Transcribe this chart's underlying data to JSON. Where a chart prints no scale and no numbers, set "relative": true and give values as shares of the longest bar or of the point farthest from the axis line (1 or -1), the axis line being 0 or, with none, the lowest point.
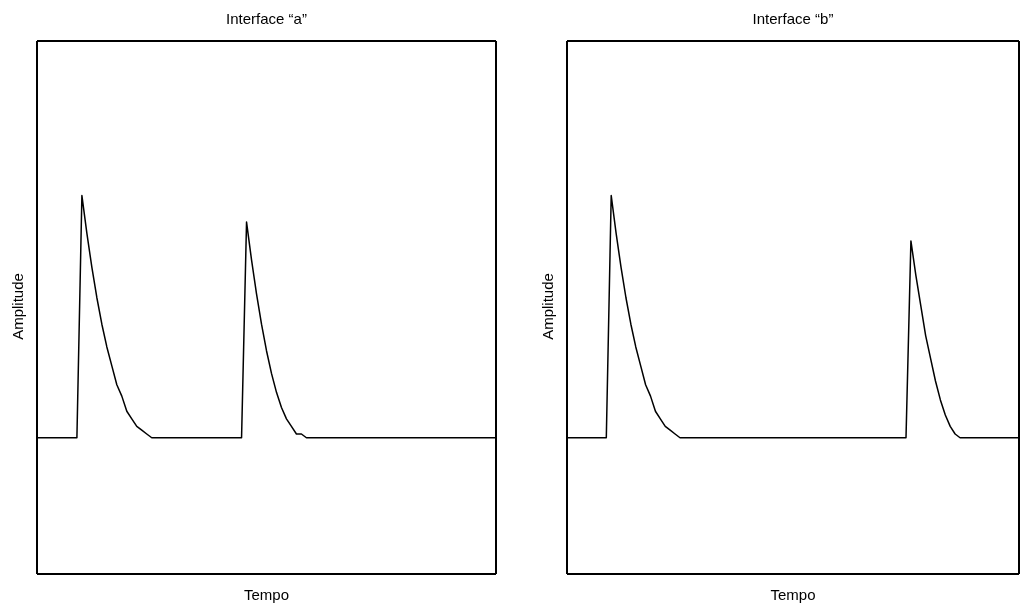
{
  "chart_data": [
    {
      "type": "line",
      "title": "Interface “a”",
      "xlabel": "Tempo",
      "ylabel": "Amplitude",
      "relative": true,
      "color": "#000000",
      "categories": [
        null,
        null,
        null,
        null,
        null,
        null,
        null,
        null,
        null,
        null,
        null,
        null,
        null,
        null,
        null,
        null,
        null,
        null,
        null,
        null,
        null,
        null,
        null,
        null,
        null,
        null,
        null,
        null,
        null,
        null,
        null,
        null,
        null,
        null,
        null,
        null,
        null,
        null,
        null,
        null,
        null,
        null,
        null,
        null,
        null,
        null,
        null,
        null,
        null,
        null,
        null,
        null,
        null,
        null,
        null,
        null,
        null,
        null,
        null,
        null,
        null,
        null,
        null,
        null,
        null,
        null,
        null,
        null,
        null,
        null,
        null,
        null,
        null,
        null,
        null,
        null,
        null,
        null,
        null,
        null,
        null,
        null,
        null,
        null,
        null,
        null,
        null,
        null,
        null,
        null,
        null,
        null,
        null
      ],
      "values": [
        0.36,
        0.36,
        0.36,
        0.36,
        0.36,
        0.36,
        0.36,
        0.36,
        0.36,
        1,
        0.9,
        0.81,
        0.73,
        0.66,
        0.6,
        0.55,
        0.5,
        0.47,
        0.43,
        0.41,
        0.39,
        0.38,
        0.37,
        0.36,
        0.36,
        0.36,
        0.36,
        0.36,
        0.36,
        0.36,
        0.36,
        0.36,
        0.36,
        0.36,
        0.36,
        0.36,
        0.36,
        0.36,
        0.36,
        0.36,
        0.36,
        0.36,
        0.93,
        0.83,
        0.74,
        0.66,
        0.59,
        0.53,
        0.48,
        0.44,
        0.41,
        0.39,
        0.37,
        0.37,
        0.36,
        0.36,
        0.36,
        0.36,
        0.36,
        0.36,
        0.36,
        0.36,
        0.36,
        0.36,
        0.36,
        0.36,
        0.36,
        0.36,
        0.36,
        0.36,
        0.36,
        0.36,
        0.36,
        0.36,
        0.36,
        0.36,
        0.36,
        0.36,
        0.36,
        0.36,
        0.36,
        0.36,
        0.36,
        0.36,
        0.36,
        0.36,
        0.36,
        0.36,
        0.36,
        0.36,
        0.36,
        0.36,
        0.36
      ]
    },
    {
      "type": "line",
      "title": "Interface “b”",
      "xlabel": "Tempo",
      "ylabel": "Amplitude",
      "relative": true,
      "color": "#000000",
      "categories": [
        null,
        null,
        null,
        null,
        null,
        null,
        null,
        null,
        null,
        null,
        null,
        null,
        null,
        null,
        null,
        null,
        null,
        null,
        null,
        null,
        null,
        null,
        null,
        null,
        null,
        null,
        null,
        null,
        null,
        null,
        null,
        null,
        null,
        null,
        null,
        null,
        null,
        null,
        null,
        null,
        null,
        null,
        null,
        null,
        null,
        null,
        null,
        null,
        null,
        null,
        null,
        null,
        null,
        null,
        null,
        null,
        null,
        null,
        null,
        null,
        null,
        null,
        null,
        null,
        null,
        null,
        null,
        null,
        null,
        null,
        null,
        null,
        null,
        null,
        null,
        null,
        null,
        null,
        null,
        null,
        null,
        null,
        null,
        null,
        null,
        null,
        null,
        null,
        null,
        null,
        null,
        null,
        null
      ],
      "values": [
        0.36,
        0.36,
        0.36,
        0.36,
        0.36,
        0.36,
        0.36,
        0.36,
        0.36,
        1,
        0.9,
        0.81,
        0.73,
        0.66,
        0.6,
        0.55,
        0.5,
        0.47,
        0.43,
        0.41,
        0.39,
        0.38,
        0.37,
        0.36,
        0.36,
        0.36,
        0.36,
        0.36,
        0.36,
        0.36,
        0.36,
        0.36,
        0.36,
        0.36,
        0.36,
        0.36,
        0.36,
        0.36,
        0.36,
        0.36,
        0.36,
        0.36,
        0.36,
        0.36,
        0.36,
        0.36,
        0.36,
        0.36,
        0.36,
        0.36,
        0.36,
        0.36,
        0.36,
        0.36,
        0.36,
        0.36,
        0.36,
        0.36,
        0.36,
        0.36,
        0.36,
        0.36,
        0.36,
        0.36,
        0.36,
        0.36,
        0.36,
        0.36,
        0.36,
        0.36,
        0.88,
        0.79,
        0.71,
        0.63,
        0.57,
        0.51,
        0.46,
        0.42,
        0.39,
        0.37,
        0.36,
        0.36,
        0.36,
        0.36,
        0.36,
        0.36,
        0.36,
        0.36,
        0.36,
        0.36,
        0.36,
        0.36,
        0.36
      ]
    }
  ]
}
